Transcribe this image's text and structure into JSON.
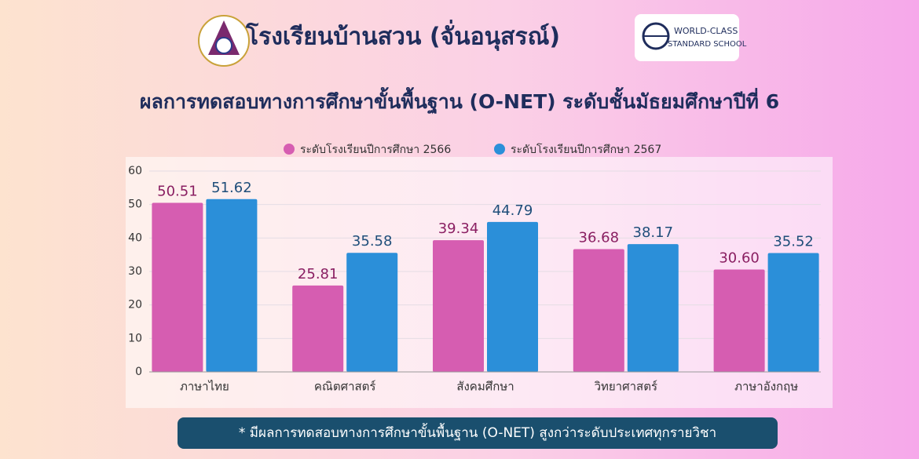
{
  "header": {
    "school": "โรงเรียนบ้านสวน (จั่นอนุสรณ์)",
    "logo_line1": "WORLD-CLASS",
    "logo_line2": "STANDARD SCHOOL"
  },
  "chart_data": {
    "type": "bar",
    "title": "ผลการทดสอบทางการศึกษาขั้นพื้นฐาน (O-NET) ระดับชั้นมัธยมศึกษาปีที่ 6",
    "categories": [
      "ภาษาไทย",
      "คณิตศาสตร์",
      "สังคมศึกษา",
      "วิทยาศาสตร์",
      "ภาษาอังกฤษ"
    ],
    "series": [
      {
        "name": "ระดับโรงเรียนปีการศึกษา 2566",
        "color": "#d65db1",
        "values": [
          50.51,
          25.81,
          39.34,
          36.68,
          30.6
        ],
        "value_labels": [
          "50.51",
          "25.81",
          "39.34",
          "36.68",
          "30.60"
        ],
        "label_color": "#8a1f62"
      },
      {
        "name": "ระดับโรงเรียนปีการศึกษา 2567",
        "color": "#2b8fd9",
        "values": [
          51.62,
          35.58,
          44.79,
          38.17,
          35.52
        ],
        "value_labels": [
          "51.62",
          "35.58",
          "44.79",
          "38.17",
          "35.52"
        ],
        "label_color": "#1f4e7a"
      }
    ],
    "ylim": [
      0,
      60
    ],
    "yticks": [
      0,
      10,
      20,
      30,
      40,
      50,
      60
    ],
    "grid": true,
    "footnote": "*   มีผลการทดสอบทางการศึกษาขั้นพื้นฐาน (O-NET) สูงกว่าระดับประเทศทุกรายวิชา"
  }
}
